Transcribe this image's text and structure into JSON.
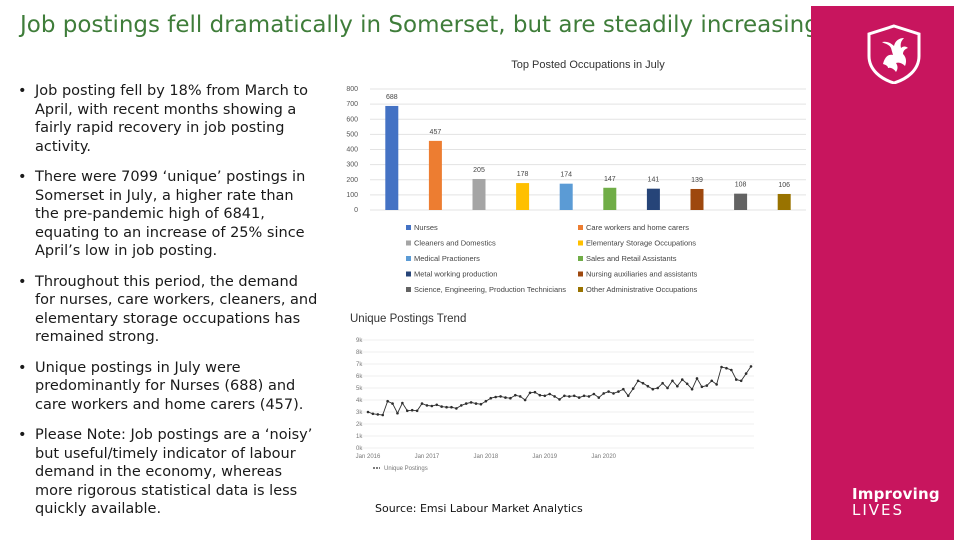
{
  "title": "Job postings fell dramatically in Somerset, but are steadily increasing",
  "bullets": [
    "Job posting fell by 18% from March to April, with recent months showing a fairly rapid recovery in job posting activity.",
    "There were 7099 ‘unique’ postings in Somerset in July, a higher rate than the pre-pandemic high of 6841, equating to an increase of 25% since April’s low in job posting.",
    "Throughout this period, the demand for nurses, care workers, cleaners, and elementary storage occupations has remained strong.",
    "Unique postings in July were predominantly for Nurses (688) and care workers and home carers (457).",
    "Please Note: Job postings are a ‘noisy’ but useful/timely indicator of labour demand in the economy, whereas more rigorous statistical data is less quickly available."
  ],
  "source": "Source: Emsi Labour Market Analytics",
  "logo": {
    "line1": "Improving",
    "line2": "LIVES"
  },
  "chart_data": [
    {
      "type": "bar",
      "title": "Top Posted Occupations in July",
      "ylim": [
        0,
        800
      ],
      "yticks": [
        0,
        100,
        200,
        300,
        400,
        500,
        600,
        700,
        800
      ],
      "categories": [
        "Nurses",
        "Care workers and home carers",
        "Cleaners and Domestics",
        "Elementary Storage Occupations",
        "Medical Practioners",
        "Sales and Retail Assistants",
        "Metal working production",
        "Nursing auxiliaries and assistants",
        "Science, Engineering, Production Technicians",
        "Other Administrative Occupations"
      ],
      "values": [
        688,
        457,
        205,
        178,
        174,
        147,
        141,
        139,
        108,
        106
      ],
      "colors": [
        "#4472c4",
        "#ed7d31",
        "#a5a5a5",
        "#ffc000",
        "#5b9bd5",
        "#70ad47",
        "#264478",
        "#9e480e",
        "#636363",
        "#997300"
      ],
      "legend_position": "bottom"
    },
    {
      "type": "line",
      "title": "Unique Postings Trend",
      "series_name": "Unique Postings",
      "ylim": [
        0,
        9000
      ],
      "ytick_labels": [
        "0k",
        "1k",
        "2k",
        "3k",
        "4k",
        "5k",
        "6k",
        "7k",
        "8k",
        "9k"
      ],
      "xtick_labels": [
        "Jan 2016",
        "Jan 2017",
        "Jan 2018",
        "Jan 2019",
        "Jan 2020"
      ],
      "color": "#2f2f2f",
      "values": [
        3000,
        2850,
        2800,
        2750,
        3900,
        3700,
        2900,
        3750,
        3100,
        3150,
        3100,
        3700,
        3550,
        3500,
        3600,
        3450,
        3400,
        3400,
        3300,
        3550,
        3700,
        3800,
        3700,
        3650,
        3900,
        4150,
        4250,
        4300,
        4200,
        4150,
        4400,
        4300,
        4000,
        4600,
        4650,
        4400,
        4350,
        4500,
        4300,
        4050,
        4350,
        4300,
        4350,
        4200,
        4350,
        4300,
        4500,
        4200,
        4550,
        4700,
        4550,
        4700,
        4900,
        4350,
        4950,
        5600,
        5400,
        5150,
        4900,
        5000,
        5400,
        5000,
        5600,
        5150,
        5700,
        5350,
        4900,
        5800,
        5100,
        5200,
        5600,
        5300,
        6750,
        6650,
        6500,
        5700,
        5600,
        6200,
        6800
      ]
    }
  ]
}
